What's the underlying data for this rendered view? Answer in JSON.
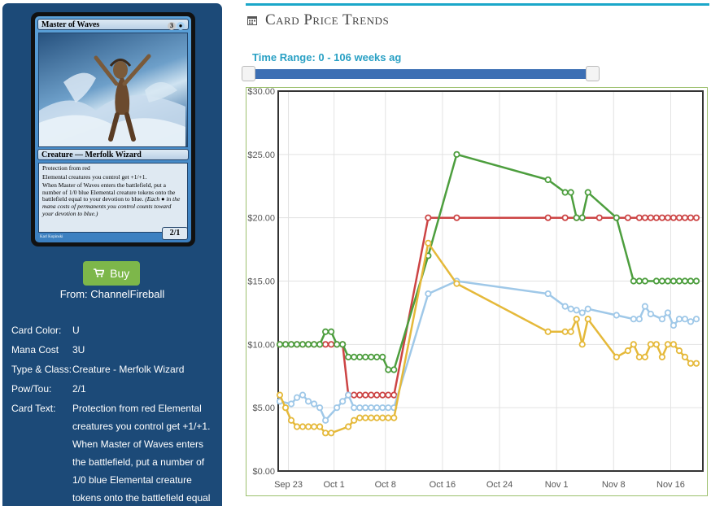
{
  "card": {
    "name": "Master of Waves",
    "mana_symbols": [
      "3",
      "U"
    ],
    "type_line": "Creature — Merfolk Wizard",
    "rules_text": [
      "Protection from red",
      "Elemental creatures you control get +1/+1.",
      "When Master of Waves enters the battlefield, put a number of 1/0 blue Elemental creature tokens onto the battlefield equal to your devotion to blue."
    ],
    "reminder_text": "(Each ● in the mana costs of permanents you control counts toward your devotion to blue.)",
    "power_toughness": "2/1",
    "artist": "Karl Kopinski",
    "art_icon": "merfolk-wizard-art"
  },
  "buy": {
    "label": "Buy",
    "icon": "cart-icon",
    "from": "From: ChannelFireball",
    "color": "#7db74a"
  },
  "details": [
    {
      "key": "Card Color:",
      "value": "U"
    },
    {
      "key": "Mana Cost",
      "value": "3U"
    },
    {
      "key": "Type & Class:",
      "value": "Creature - Merfolk Wizard"
    },
    {
      "key": "Pow/Tou:",
      "value": "2/1"
    },
    {
      "key": "Card Text:",
      "value": "Protection from red Elemental creatures you control get +1/+1. When Master of Waves enters the battlefield, put a number of 1/0 blue Elemental creature tokens onto the battlefield equal"
    }
  ],
  "trends": {
    "title": "Card Price Trends",
    "icon": "calendar-icon",
    "time_range": "Time Range: 0 - 106 weeks ag",
    "accent": "#1ba7c9",
    "slider_color": "#3c6fb4"
  },
  "chart_data": {
    "type": "line",
    "ylim": [
      0,
      30
    ],
    "yticks": [
      "$0.00",
      "$5.00",
      "$10.00",
      "$15.00",
      "$20.00",
      "$25.00",
      "$30.00"
    ],
    "xlim": [
      0,
      73
    ],
    "xticks": [
      {
        "label": "Sep 23",
        "x": 1.5
      },
      {
        "label": "Oct 1",
        "x": 9.5
      },
      {
        "label": "Oct 8",
        "x": 18.5
      },
      {
        "label": "Oct 16",
        "x": 28.5
      },
      {
        "label": "Oct 24",
        "x": 38.5
      },
      {
        "label": "Nov 1",
        "x": 48.5
      },
      {
        "label": "Nov 8",
        "x": 58.5
      },
      {
        "label": "Nov 16",
        "x": 68.5
      }
    ],
    "grid": true,
    "series": [
      {
        "color": "#cc4444",
        "points": [
          [
            0,
            10
          ],
          [
            1,
            10
          ],
          [
            2,
            10
          ],
          [
            3,
            10
          ],
          [
            4,
            10
          ],
          [
            5,
            10
          ],
          [
            6,
            10
          ],
          [
            7,
            10
          ],
          [
            8,
            10
          ],
          [
            9,
            10
          ],
          [
            10,
            10
          ],
          [
            11,
            10
          ],
          [
            12,
            6
          ],
          [
            13,
            6
          ],
          [
            14,
            6
          ],
          [
            15,
            6
          ],
          [
            16,
            6
          ],
          [
            17,
            6
          ],
          [
            18,
            6
          ],
          [
            19,
            6
          ],
          [
            20,
            6
          ],
          [
            26,
            20
          ],
          [
            31,
            20
          ],
          [
            47,
            20
          ],
          [
            50,
            20
          ],
          [
            52,
            20
          ],
          [
            53,
            20
          ],
          [
            56,
            20
          ],
          [
            59,
            20
          ],
          [
            61,
            20
          ],
          [
            63,
            20
          ],
          [
            64,
            20
          ],
          [
            65,
            20
          ],
          [
            66,
            20
          ],
          [
            67,
            20
          ],
          [
            68,
            20
          ],
          [
            69,
            20
          ],
          [
            70,
            20
          ],
          [
            71,
            20
          ],
          [
            72,
            20
          ],
          [
            73,
            20
          ]
        ]
      },
      {
        "color": "#4d9e3e",
        "points": [
          [
            0,
            10
          ],
          [
            1,
            10
          ],
          [
            2,
            10
          ],
          [
            3,
            10
          ],
          [
            4,
            10
          ],
          [
            5,
            10
          ],
          [
            6,
            10
          ],
          [
            7,
            10
          ],
          [
            8,
            11
          ],
          [
            9,
            11
          ],
          [
            10,
            10
          ],
          [
            11,
            10
          ],
          [
            12,
            9
          ],
          [
            13,
            9
          ],
          [
            14,
            9
          ],
          [
            15,
            9
          ],
          [
            16,
            9
          ],
          [
            17,
            9
          ],
          [
            18,
            9
          ],
          [
            19,
            8
          ],
          [
            20,
            8
          ],
          [
            26,
            17
          ],
          [
            31,
            25
          ],
          [
            47,
            23
          ],
          [
            50,
            22
          ],
          [
            51,
            22
          ],
          [
            52,
            20
          ],
          [
            53,
            20
          ],
          [
            54,
            22
          ],
          [
            59,
            20
          ],
          [
            62,
            15
          ],
          [
            63,
            15
          ],
          [
            64,
            15
          ],
          [
            66,
            15
          ],
          [
            67,
            15
          ],
          [
            68,
            15
          ],
          [
            69,
            15
          ],
          [
            70,
            15
          ],
          [
            71,
            15
          ],
          [
            72,
            15
          ],
          [
            73,
            15
          ]
        ]
      },
      {
        "color": "#9fc8e8",
        "points": [
          [
            0,
            5.5
          ],
          [
            2,
            5.3
          ],
          [
            3,
            5.8
          ],
          [
            4,
            6
          ],
          [
            5,
            5.5
          ],
          [
            6,
            5.3
          ],
          [
            7,
            5
          ],
          [
            8,
            4
          ],
          [
            10,
            5
          ],
          [
            11,
            5.5
          ],
          [
            12,
            6
          ],
          [
            13,
            5
          ],
          [
            14,
            5
          ],
          [
            15,
            5
          ],
          [
            16,
            5
          ],
          [
            17,
            5
          ],
          [
            18,
            5
          ],
          [
            19,
            5
          ],
          [
            20,
            5
          ],
          [
            26,
            14
          ],
          [
            31,
            15
          ],
          [
            47,
            14
          ],
          [
            50,
            13
          ],
          [
            51,
            12.8
          ],
          [
            52,
            12.7
          ],
          [
            53,
            12.5
          ],
          [
            54,
            12.8
          ],
          [
            59,
            12.3
          ],
          [
            62,
            12
          ],
          [
            63,
            12
          ],
          [
            64,
            13
          ],
          [
            65,
            12.4
          ],
          [
            67,
            12
          ],
          [
            68,
            12.5
          ],
          [
            69,
            11.5
          ],
          [
            70,
            12
          ],
          [
            71,
            12
          ],
          [
            72,
            11.8
          ],
          [
            73,
            12
          ]
        ]
      },
      {
        "color": "#e5b93a",
        "points": [
          [
            0,
            6
          ],
          [
            1,
            5
          ],
          [
            2,
            4
          ],
          [
            3,
            3.5
          ],
          [
            4,
            3.5
          ],
          [
            5,
            3.5
          ],
          [
            6,
            3.5
          ],
          [
            7,
            3.5
          ],
          [
            8,
            3
          ],
          [
            9,
            3
          ],
          [
            12,
            3.5
          ],
          [
            13,
            4
          ],
          [
            14,
            4.2
          ],
          [
            15,
            4.2
          ],
          [
            16,
            4.2
          ],
          [
            17,
            4.2
          ],
          [
            18,
            4.2
          ],
          [
            19,
            4.2
          ],
          [
            20,
            4.2
          ],
          [
            26,
            18
          ],
          [
            31,
            14.8
          ],
          [
            47,
            11
          ],
          [
            50,
            11
          ],
          [
            51,
            11
          ],
          [
            52,
            12
          ],
          [
            53,
            10
          ],
          [
            54,
            12
          ],
          [
            59,
            9
          ],
          [
            61,
            9.5
          ],
          [
            62,
            10
          ],
          [
            63,
            9
          ],
          [
            64,
            9
          ],
          [
            65,
            10
          ],
          [
            66,
            10
          ],
          [
            67,
            9
          ],
          [
            68,
            10
          ],
          [
            69,
            10
          ],
          [
            70,
            9.5
          ],
          [
            71,
            9
          ],
          [
            72,
            8.5
          ],
          [
            73,
            8.5
          ]
        ]
      }
    ]
  }
}
